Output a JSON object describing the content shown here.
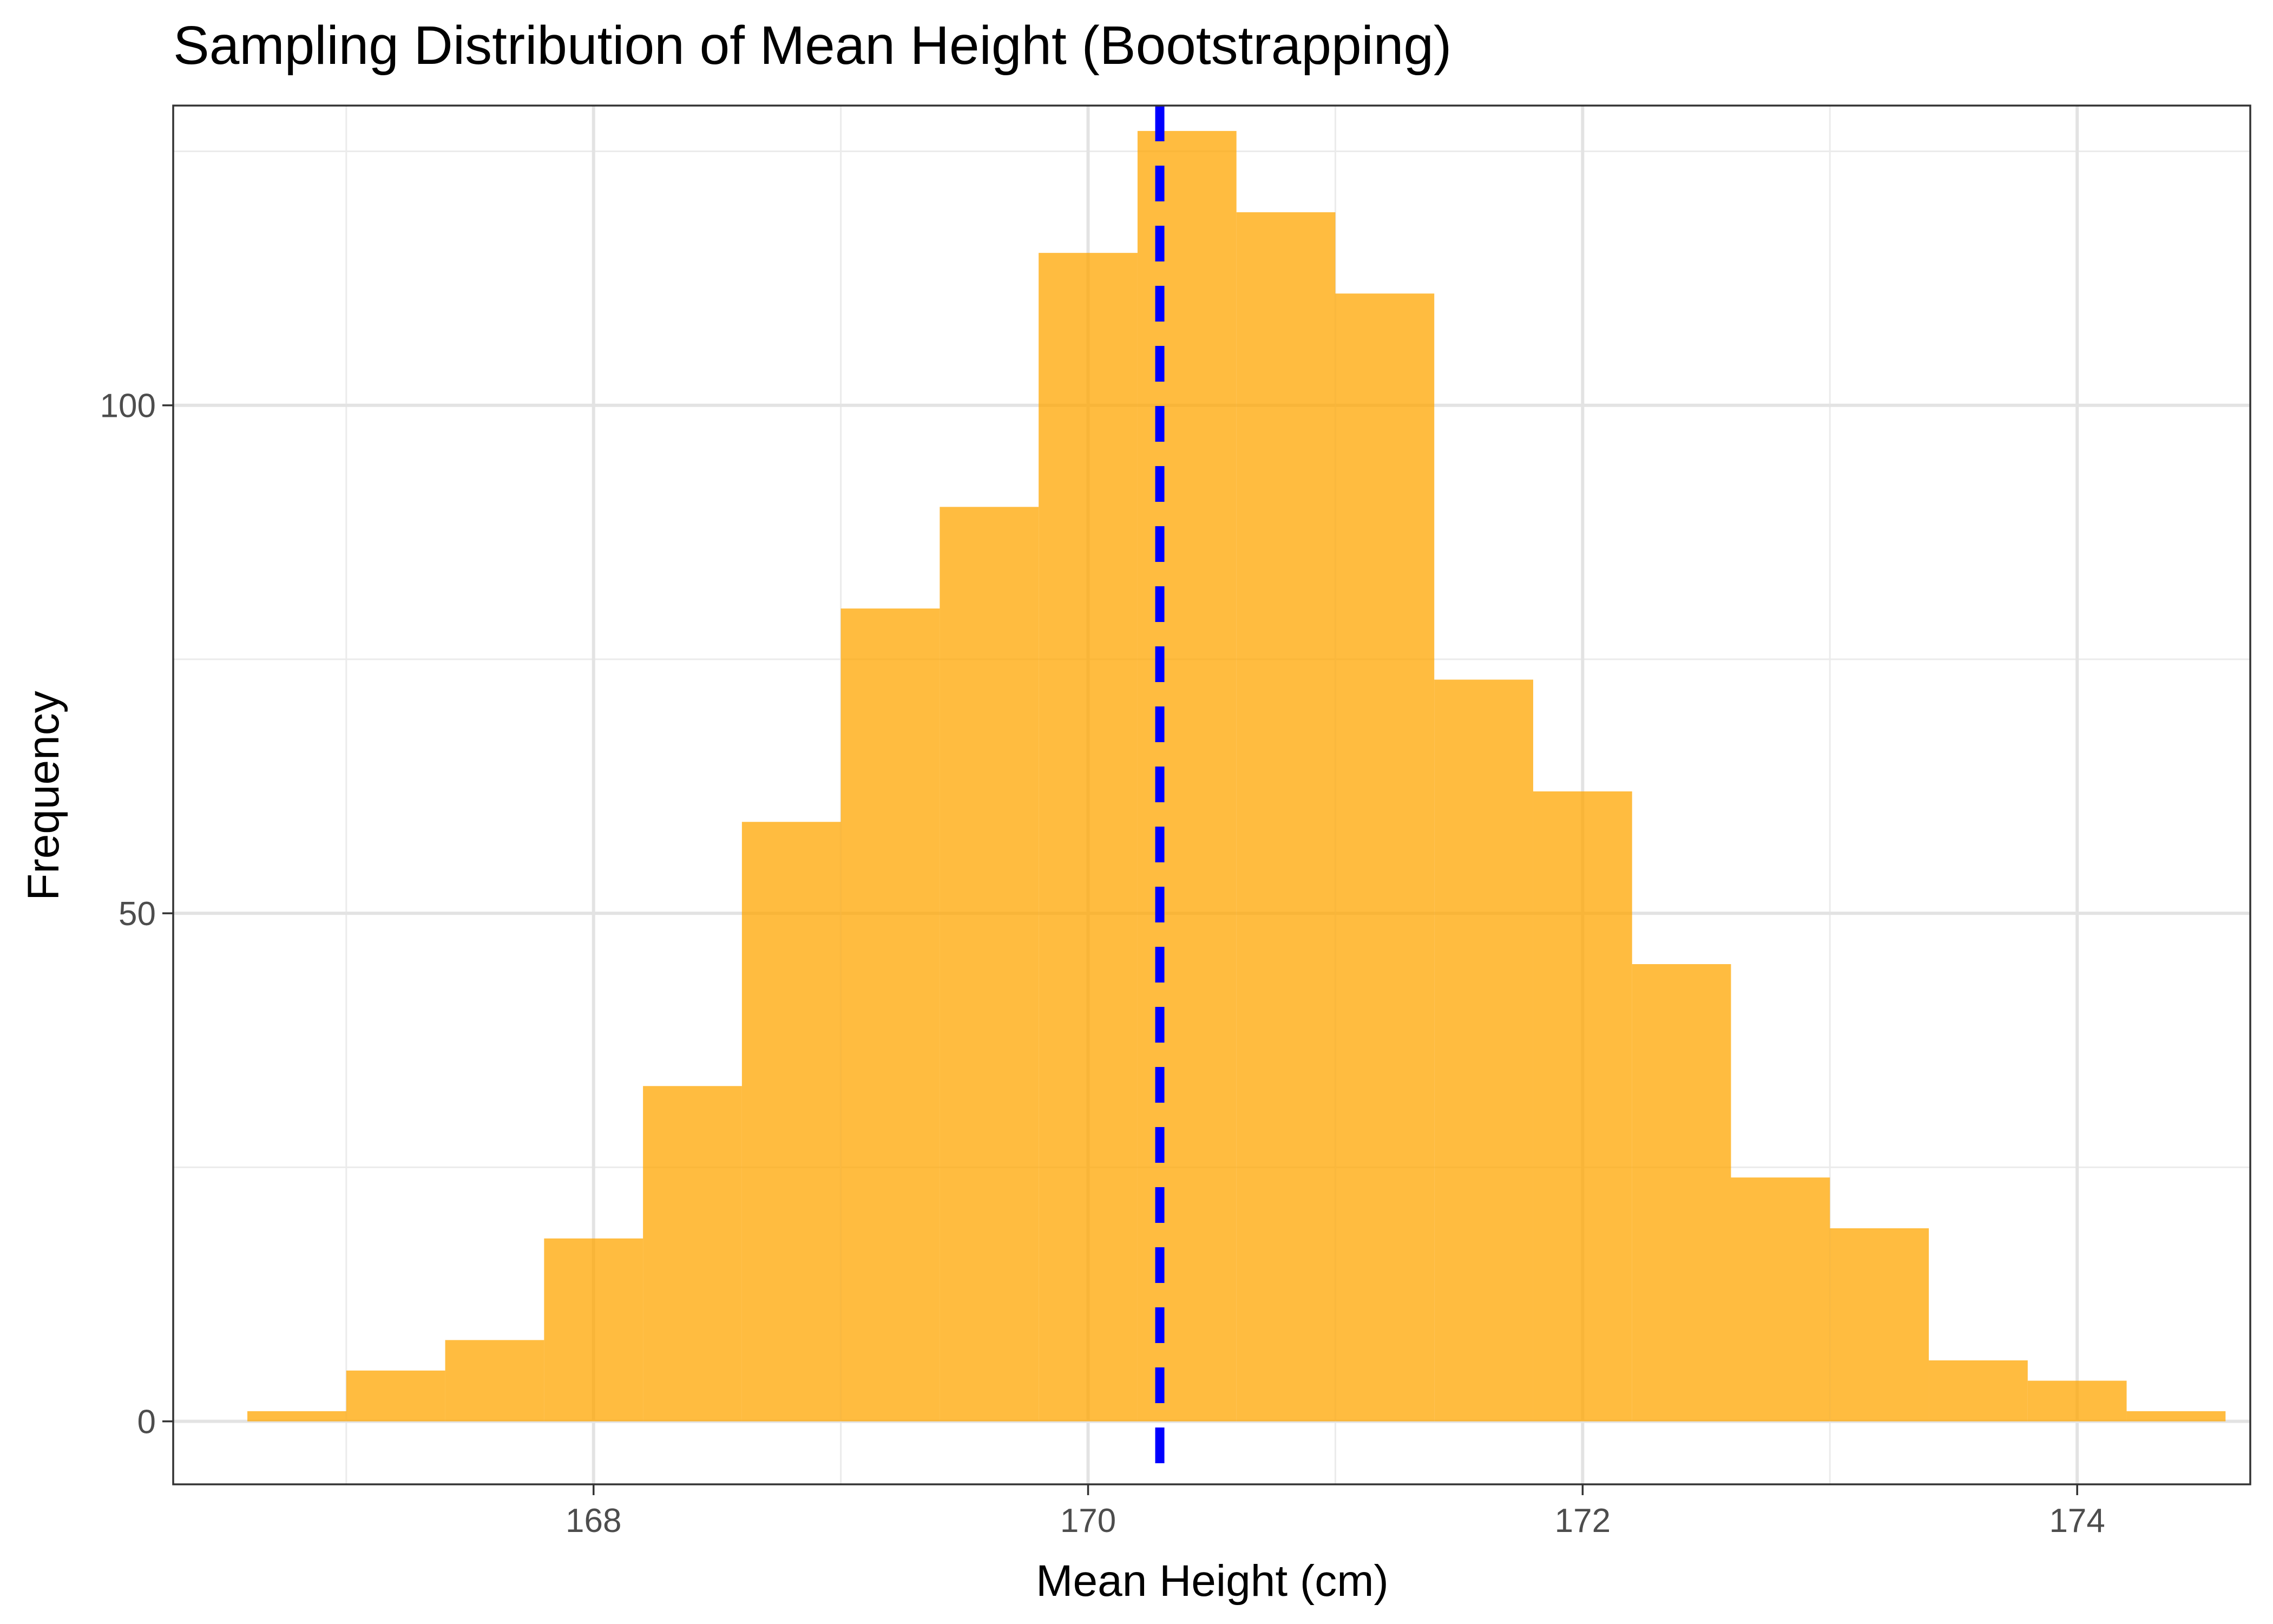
{
  "chart_data": {
    "type": "bar",
    "subtype": "histogram",
    "title": "Sampling Distribution of Mean Height (Bootstrapping)",
    "xlabel": "Mean Height (cm)",
    "ylabel": "Frequency",
    "xlim": [
      166.3,
      174.7
    ],
    "ylim": [
      -6.2,
      129.5
    ],
    "x_ticks": [
      168,
      170,
      172,
      174
    ],
    "x_tick_labels": [
      "168",
      "170",
      "172",
      "174"
    ],
    "y_ticks": [
      0,
      50,
      100
    ],
    "y_tick_labels": [
      "0",
      "50",
      "100"
    ],
    "bins": [
      {
        "start": 166.6,
        "end": 167.0,
        "count": 1
      },
      {
        "start": 167.0,
        "end": 167.4,
        "count": 5
      },
      {
        "start": 167.4,
        "end": 167.8,
        "count": 8
      },
      {
        "start": 167.8,
        "end": 168.2,
        "count": 18
      },
      {
        "start": 168.2,
        "end": 168.6,
        "count": 33
      },
      {
        "start": 168.6,
        "end": 169.0,
        "count": 59
      },
      {
        "start": 169.0,
        "end": 169.4,
        "count": 80
      },
      {
        "start": 169.4,
        "end": 169.8,
        "count": 90
      },
      {
        "start": 169.8,
        "end": 170.2,
        "count": 115
      },
      {
        "start": 170.2,
        "end": 170.6,
        "count": 127
      },
      {
        "start": 170.6,
        "end": 171.0,
        "count": 119
      },
      {
        "start": 171.0,
        "end": 171.4,
        "count": 111
      },
      {
        "start": 171.4,
        "end": 171.8,
        "count": 73
      },
      {
        "start": 171.8,
        "end": 172.2,
        "count": 62
      },
      {
        "start": 172.2,
        "end": 172.6,
        "count": 45
      },
      {
        "start": 172.6,
        "end": 173.0,
        "count": 24
      },
      {
        "start": 173.0,
        "end": 173.4,
        "count": 19
      },
      {
        "start": 173.4,
        "end": 173.8,
        "count": 6
      },
      {
        "start": 173.8,
        "end": 174.2,
        "count": 4
      },
      {
        "start": 174.2,
        "end": 174.6,
        "count": 1
      }
    ],
    "bar_color": "#FFA500",
    "bar_opacity": 0.75,
    "vline": {
      "x": 170.29,
      "color": "#0000FF",
      "style": "dashed"
    },
    "grid": true,
    "legend": "none"
  }
}
